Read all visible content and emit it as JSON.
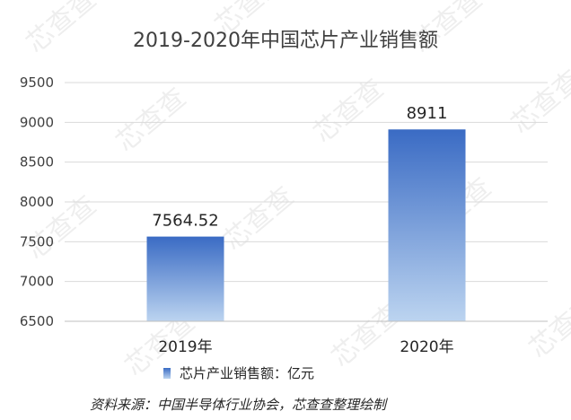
{
  "chart_data": {
    "type": "bar",
    "title": "2019-2020年中国芯片产业销售额",
    "categories": [
      "2019年",
      "2020年"
    ],
    "series": [
      {
        "name": "芯片产业销售额：亿元",
        "values": [
          7564.52,
          8911
        ]
      }
    ],
    "data_labels": [
      "7564.52",
      "8911"
    ],
    "ylim": [
      6500,
      9500
    ],
    "yticks": [
      6500,
      7000,
      7500,
      8000,
      8500,
      9000,
      9500
    ],
    "ytick_labels": [
      "6500",
      "7000",
      "7500",
      "8000",
      "8500",
      "9000",
      "9500"
    ],
    "grid": true,
    "legend_position": "bottom",
    "bar_color_top": "#3a6bc4",
    "bar_color_bottom": "#bcd4f0"
  },
  "source_note": "资料来源：中国半导体行业协会，芯查查整理绘制",
  "watermark_text": "芯查查"
}
